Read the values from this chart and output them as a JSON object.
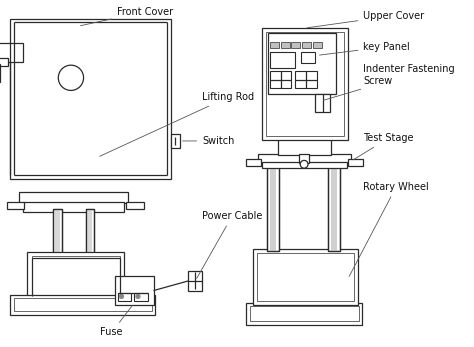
{
  "background_color": "#ffffff",
  "line_color": "#2a2a2a",
  "label_color": "#111111",
  "font_size": 7.0,
  "labels": {
    "front_cover": "Front Cover",
    "lifting_rod": "Lifting Rod",
    "switch": "Switch",
    "power_cable": "Power Cable",
    "fuse": "Fuse",
    "upper_cover": "Upper Cover",
    "key_panel": "key Panel",
    "indenter_fastening": "Indenter Fastening\nScrew",
    "test_stage": "Test Stage",
    "rotary_wheel": "Rotary Wheel"
  }
}
